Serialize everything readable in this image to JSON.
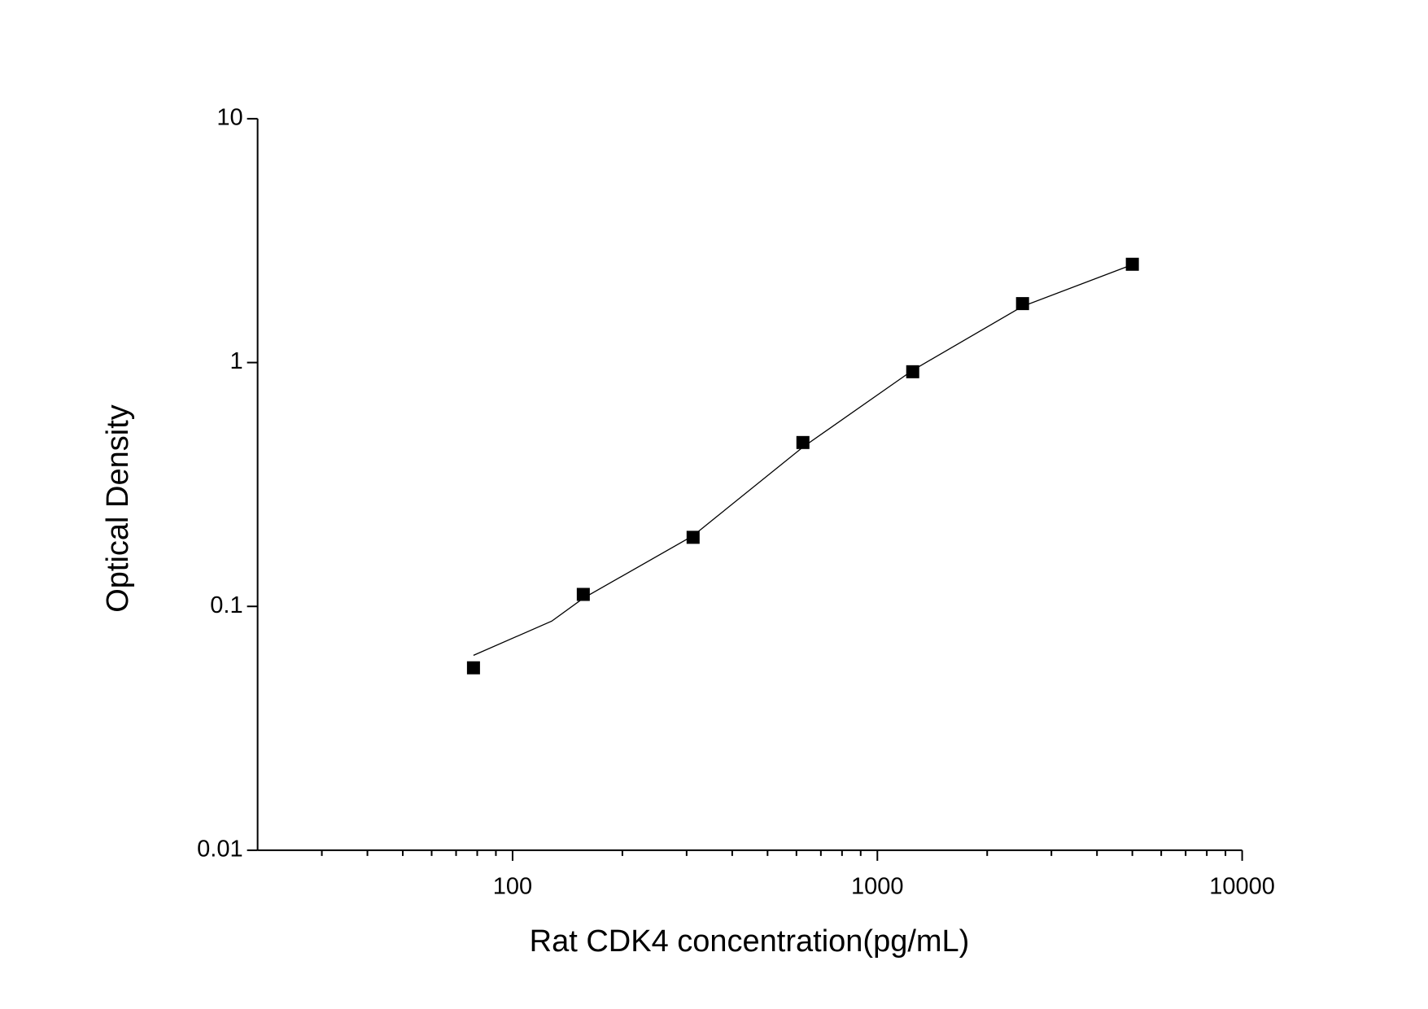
{
  "chart_data": {
    "type": "scatter",
    "x_label": "Rat CDK4 concentration(pg/mL)",
    "y_label": "Optical Density",
    "xlog": true,
    "ylog": true,
    "xlim": [
      20,
      10000
    ],
    "ylim": [
      0.01,
      10
    ],
    "xticks": [
      100,
      1000,
      10000
    ],
    "xminorticks": [
      30,
      40,
      50,
      60,
      70,
      80,
      90,
      200,
      300,
      400,
      500,
      600,
      700,
      800,
      900,
      2000,
      3000,
      4000,
      5000,
      6000,
      7000,
      8000,
      9000
    ],
    "yticks": [
      0.01,
      0.1,
      1,
      10
    ],
    "series": [
      {
        "type": "scatter",
        "color": "#000000",
        "x": [
          78.125,
          156.25,
          312.5,
          625,
          1250,
          2500,
          5000
        ],
        "values": [
          0.056,
          0.112,
          0.192,
          0.47,
          0.917,
          1.745,
          2.53
        ]
      },
      {
        "type": "line",
        "color": "#000000",
        "x": [
          78.125,
          128,
          156.25,
          312.5,
          625,
          1250,
          2500,
          5000
        ],
        "values": [
          0.063,
          0.087,
          0.108,
          0.195,
          0.45,
          0.93,
          1.7,
          2.52
        ]
      }
    ]
  }
}
